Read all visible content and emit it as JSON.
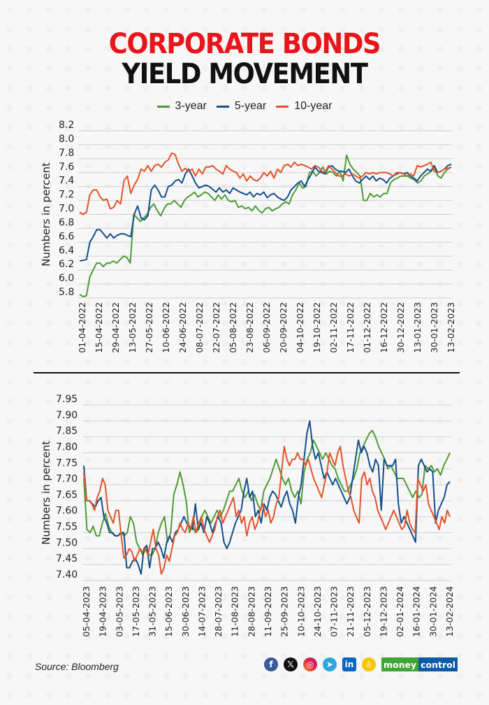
{
  "title": {
    "line1": "CORPORATE BONDS",
    "line2": "YIELD MOVEMENT"
  },
  "legend": [
    {
      "label": "3-year",
      "color": "#4e9a35"
    },
    {
      "label": "5-year",
      "color": "#114f8c"
    },
    {
      "label": "10-year",
      "color": "#e4532a"
    }
  ],
  "footer": {
    "source": "Source: Bloomberg",
    "social_icons": [
      "facebook-icon",
      "x-icon",
      "instagram-icon",
      "telegram-icon",
      "linkedin-icon",
      "snapchat-icon"
    ],
    "brand_part1": "money",
    "brand_part2": "control",
    "brand_colors": {
      "part1": "#3fa534",
      "part2": "#0f5aa4"
    }
  },
  "chart_data": [
    {
      "type": "line",
      "title": "",
      "xlabel": "",
      "ylabel": "Numbers in percent",
      "ylim": [
        5.8,
        8.2
      ],
      "yticks": [
        "8.2",
        "8.0",
        "7.8",
        "7.6",
        "7.4",
        "7.2",
        "7.0",
        "6.8",
        "6.6",
        "6.4",
        "6.2",
        "6.0",
        "5.8"
      ],
      "ytick_values": [
        8.2,
        8.0,
        7.8,
        7.6,
        7.4,
        7.2,
        7.0,
        6.8,
        6.6,
        6.4,
        6.2,
        6.0,
        5.8
      ],
      "grid": true,
      "legend_position": "top-center",
      "xticks": [
        "01-04-2022",
        "15-04-2022",
        "29-04-2022",
        "13-05-2022",
        "27-05-2022",
        "10-06-2022",
        "24-06-2022",
        "08-07-2022",
        "22-07-2022",
        "05-08-2022",
        "23-08-2022",
        "06-09-2022",
        "20-09-2022",
        "04-10-2022",
        "19-10-2022",
        "02-11-2022",
        "17-11-2022",
        "01-12-2022",
        "16-12-2022",
        "30-12-2022",
        "13-01-2023",
        "30-01-2023",
        "13-02-2023"
      ],
      "series": [
        {
          "name": "3-year",
          "color": "#4e9a35",
          "values": [
            5.85,
            5.82,
            5.83,
            6.1,
            6.2,
            6.3,
            6.3,
            6.25,
            6.3,
            6.3,
            6.33,
            6.3,
            6.35,
            6.4,
            6.38,
            6.3,
            7.0,
            6.95,
            6.9,
            6.95,
            7.0,
            7.1,
            7.15,
            7.05,
            6.98,
            7.08,
            7.15,
            7.15,
            7.2,
            7.15,
            7.1,
            7.2,
            7.25,
            7.28,
            7.32,
            7.25,
            7.28,
            7.32,
            7.3,
            7.25,
            7.2,
            7.28,
            7.22,
            7.28,
            7.2,
            7.18,
            7.2,
            7.1,
            7.12,
            7.08,
            7.1,
            7.05,
            7.12,
            7.06,
            7.02,
            7.08,
            7.1,
            7.05,
            7.08,
            7.1,
            7.15,
            7.18,
            7.15,
            7.28,
            7.35,
            7.45,
            7.38,
            7.4,
            7.6,
            7.62,
            7.55,
            7.6,
            7.68,
            7.58,
            7.62,
            7.6,
            7.55,
            7.62,
            7.48,
            7.85,
            7.72,
            7.65,
            7.6,
            7.55,
            7.2,
            7.2,
            7.3,
            7.25,
            7.28,
            7.25,
            7.3,
            7.3,
            7.45,
            7.5,
            7.52,
            7.55,
            7.55,
            7.55,
            7.52,
            7.5,
            7.45,
            7.48,
            7.55,
            7.58,
            7.62,
            7.68,
            7.55,
            7.52,
            7.6,
            7.65,
            7.68
          ]
        },
        {
          "name": "5-year",
          "color": "#114f8c",
          "values": [
            6.33,
            6.34,
            6.35,
            6.6,
            6.68,
            6.78,
            6.78,
            6.72,
            6.66,
            6.72,
            6.66,
            6.7,
            6.72,
            6.72,
            6.7,
            6.68,
            7.0,
            7.12,
            6.95,
            6.92,
            6.98,
            7.35,
            7.42,
            7.35,
            7.25,
            7.25,
            7.4,
            7.42,
            7.48,
            7.5,
            7.45,
            7.58,
            7.65,
            7.55,
            7.45,
            7.38,
            7.4,
            7.42,
            7.4,
            7.36,
            7.32,
            7.38,
            7.32,
            7.35,
            7.3,
            7.38,
            7.35,
            7.32,
            7.3,
            7.28,
            7.32,
            7.25,
            7.3,
            7.28,
            7.32,
            7.24,
            7.28,
            7.3,
            7.25,
            7.22,
            7.2,
            7.25,
            7.35,
            7.4,
            7.45,
            7.48,
            7.4,
            7.5,
            7.58,
            7.68,
            7.62,
            7.6,
            7.58,
            7.68,
            7.7,
            7.65,
            7.62,
            7.62,
            7.6,
            7.65,
            7.55,
            7.48,
            7.45,
            7.5,
            7.55,
            7.5,
            7.55,
            7.48,
            7.52,
            7.5,
            7.45,
            7.52,
            7.55,
            7.58,
            7.6,
            7.58,
            7.6,
            7.55,
            7.52,
            7.48,
            7.55,
            7.6,
            7.65,
            7.62,
            7.7,
            7.6,
            7.62,
            7.65,
            7.7,
            7.72
          ]
        },
        {
          "name": "10-year",
          "color": "#e4532a",
          "values": [
            7.03,
            7.0,
            7.03,
            7.28,
            7.35,
            7.35,
            7.25,
            7.2,
            7.22,
            7.08,
            7.1,
            7.2,
            7.15,
            7.48,
            7.55,
            7.3,
            7.42,
            7.5,
            7.65,
            7.62,
            7.7,
            7.62,
            7.7,
            7.72,
            7.68,
            7.75,
            7.78,
            7.88,
            7.86,
            7.72,
            7.62,
            7.66,
            7.62,
            7.65,
            7.55,
            7.65,
            7.58,
            7.68,
            7.68,
            7.7,
            7.65,
            7.62,
            7.58,
            7.7,
            7.65,
            7.62,
            7.6,
            7.52,
            7.58,
            7.48,
            7.55,
            7.5,
            7.48,
            7.52,
            7.6,
            7.55,
            7.62,
            7.52,
            7.65,
            7.6,
            7.7,
            7.72,
            7.68,
            7.75,
            7.7,
            7.72,
            7.7,
            7.68,
            7.65,
            7.7,
            7.68,
            7.62,
            7.6,
            7.7,
            7.65,
            7.6,
            7.55,
            7.55,
            7.58,
            7.55,
            7.58,
            7.55,
            7.52,
            7.55,
            7.6,
            7.58,
            7.6,
            7.58,
            7.6,
            7.6,
            7.6,
            7.58,
            7.55,
            7.6,
            7.6,
            7.58,
            7.55,
            7.58,
            7.55,
            7.7,
            7.68,
            7.7,
            7.72,
            7.75,
            7.62,
            7.6,
            7.62,
            7.65,
            7.66,
            7.68
          ]
        }
      ]
    },
    {
      "type": "line",
      "title": "",
      "xlabel": "",
      "ylabel": "Numbers in percent",
      "ylim": [
        7.4,
        7.95
      ],
      "yticks": [
        "7.95",
        "7.90",
        "7.85",
        "7.80",
        "7.75",
        "7.70",
        "7.65",
        "7.60",
        "7.55",
        "7.50",
        "7.45",
        "7.40"
      ],
      "ytick_values": [
        7.95,
        7.9,
        7.85,
        7.8,
        7.75,
        7.7,
        7.65,
        7.6,
        7.55,
        7.5,
        7.45,
        7.4
      ],
      "grid": true,
      "legend_position": "top-center",
      "xticks": [
        "05-04-2023",
        "19-04-2023",
        "03-05-2023",
        "17-05-2023",
        "31-05-2023",
        "15-06-2023",
        "30-06-2023",
        "14-07-2023",
        "28-07-2023",
        "11-08-2023",
        "28-08-2023",
        "11-09-2023",
        "25-09-2023",
        "10-10-2023",
        "24-10-2023",
        "07-11-2023",
        "21-11-2023",
        "05-12-2023",
        "19-12-2023",
        "02-01-2024",
        "16-01-2024",
        "30-01-2024",
        "13-02-2024"
      ],
      "series": [
        {
          "name": "3-year",
          "color": "#4e9a35",
          "values": [
            7.72,
            7.56,
            7.55,
            7.57,
            7.54,
            7.54,
            7.58,
            7.61,
            7.57,
            7.55,
            7.54,
            7.54,
            7.55,
            7.54,
            7.55,
            7.6,
            7.58,
            7.52,
            7.5,
            7.48,
            7.5,
            7.48,
            7.48,
            7.5,
            7.55,
            7.58,
            7.6,
            7.52,
            7.55,
            7.67,
            7.7,
            7.74,
            7.7,
            7.65,
            7.55,
            7.57,
            7.55,
            7.56,
            7.6,
            7.62,
            7.6,
            7.58,
            7.6,
            7.62,
            7.6,
            7.62,
            7.65,
            7.68,
            7.68,
            7.7,
            7.72,
            7.68,
            7.66,
            7.68,
            7.65,
            7.67,
            7.64,
            7.62,
            7.68,
            7.7,
            7.72,
            7.75,
            7.78,
            7.75,
            7.72,
            7.7,
            7.72,
            7.68,
            7.66,
            7.68,
            7.64,
            7.74,
            7.78,
            7.8,
            7.84,
            7.82,
            7.8,
            7.78,
            7.8,
            7.78,
            7.76,
            7.75,
            7.72,
            7.7,
            7.68,
            7.68,
            7.7,
            7.72,
            7.75,
            7.8,
            7.82,
            7.84,
            7.86,
            7.87,
            7.85,
            7.82,
            7.8,
            7.78,
            7.75,
            7.76,
            7.74,
            7.72,
            7.72,
            7.72,
            7.7,
            7.68,
            7.66,
            7.68,
            7.66,
            7.67,
            7.76,
            7.75,
            7.76,
            7.74,
            7.75,
            7.73,
            7.76,
            7.78,
            7.8
          ]
        },
        {
          "name": "5-year",
          "color": "#114f8c",
          "values": [
            7.76,
            7.65,
            7.65,
            7.64,
            7.63,
            7.65,
            7.66,
            7.6,
            7.58,
            7.55,
            7.55,
            7.54,
            7.54,
            7.55,
            7.55,
            7.44,
            7.44,
            7.46,
            7.47,
            7.45,
            7.42,
            7.5,
            7.51,
            7.44,
            7.5,
            7.5,
            7.52,
            7.5,
            7.47,
            7.52,
            7.54,
            7.52,
            7.55,
            7.56,
            7.58,
            7.6,
            7.58,
            7.57,
            7.56,
            7.64,
            7.56,
            7.58,
            7.55,
            7.6,
            7.58,
            7.55,
            7.58,
            7.6,
            7.58,
            7.52,
            7.5,
            7.52,
            7.55,
            7.58,
            7.6,
            7.62,
            7.68,
            7.72,
            7.66,
            7.68,
            7.6,
            7.62,
            7.58,
            7.64,
            7.62,
            7.66,
            7.68,
            7.67,
            7.65,
            7.63,
            7.66,
            7.68,
            7.64,
            7.62,
            7.58,
            7.66,
            7.7,
            7.78,
            7.86,
            7.9,
            7.82,
            7.78,
            7.8,
            7.76,
            7.72,
            7.74,
            7.72,
            7.7,
            7.72,
            7.7,
            7.68,
            7.66,
            7.64,
            7.66,
            7.72,
            7.78,
            7.84,
            7.8,
            7.82,
            7.8,
            7.76,
            7.74,
            7.78,
            7.76,
            7.62,
            7.78,
            7.76,
            7.76,
            7.76,
            7.78,
            7.64,
            7.58,
            7.6,
            7.58,
            7.56,
            7.54,
            7.52,
            7.76,
            7.78,
            7.76,
            7.74,
            7.75,
            7.74,
            7.58,
            7.62,
            7.64,
            7.66,
            7.7,
            7.71
          ]
        },
        {
          "name": "10-year",
          "color": "#e4532a",
          "values": [
            7.74,
            7.65,
            7.65,
            7.64,
            7.62,
            7.66,
            7.68,
            7.72,
            7.7,
            7.62,
            7.6,
            7.58,
            7.62,
            7.62,
            7.54,
            7.47,
            7.48,
            7.5,
            7.49,
            7.46,
            7.48,
            7.5,
            7.49,
            7.5,
            7.48,
            7.52,
            7.56,
            7.5,
            7.48,
            7.42,
            7.44,
            7.48,
            7.46,
            7.5,
            7.54,
            7.55,
            7.58,
            7.56,
            7.55,
            7.58,
            7.56,
            7.6,
            7.55,
            7.58,
            7.6,
            7.56,
            7.54,
            7.52,
            7.54,
            7.56,
            7.6,
            7.62,
            7.58,
            7.6,
            7.62,
            7.64,
            7.66,
            7.6,
            7.62,
            7.58,
            7.6,
            7.54,
            7.58,
            7.6,
            7.56,
            7.58,
            7.62,
            7.64,
            7.6,
            7.62,
            7.58,
            7.6,
            7.64,
            7.66,
            7.74,
            7.82,
            7.78,
            7.76,
            7.78,
            7.78,
            7.8,
            7.78,
            7.78,
            7.76,
            7.78,
            7.75,
            7.72,
            7.7,
            7.68,
            7.66,
            7.7,
            7.74,
            7.8,
            7.78,
            7.76,
            7.8,
            7.82,
            7.76,
            7.72,
            7.68,
            7.66,
            7.62,
            7.6,
            7.58,
            7.72,
            7.74,
            7.7,
            7.72,
            7.68,
            7.66,
            7.62,
            7.6,
            7.58,
            7.56,
            7.58,
            7.6,
            7.62,
            7.6,
            7.58,
            7.56,
            7.57,
            7.62,
            7.58,
            7.56,
            7.55,
            7.72,
            7.7,
            7.68,
            7.7,
            7.64,
            7.62,
            7.6,
            7.58,
            7.56,
            7.6,
            7.58,
            7.62,
            7.6
          ]
        }
      ]
    }
  ]
}
